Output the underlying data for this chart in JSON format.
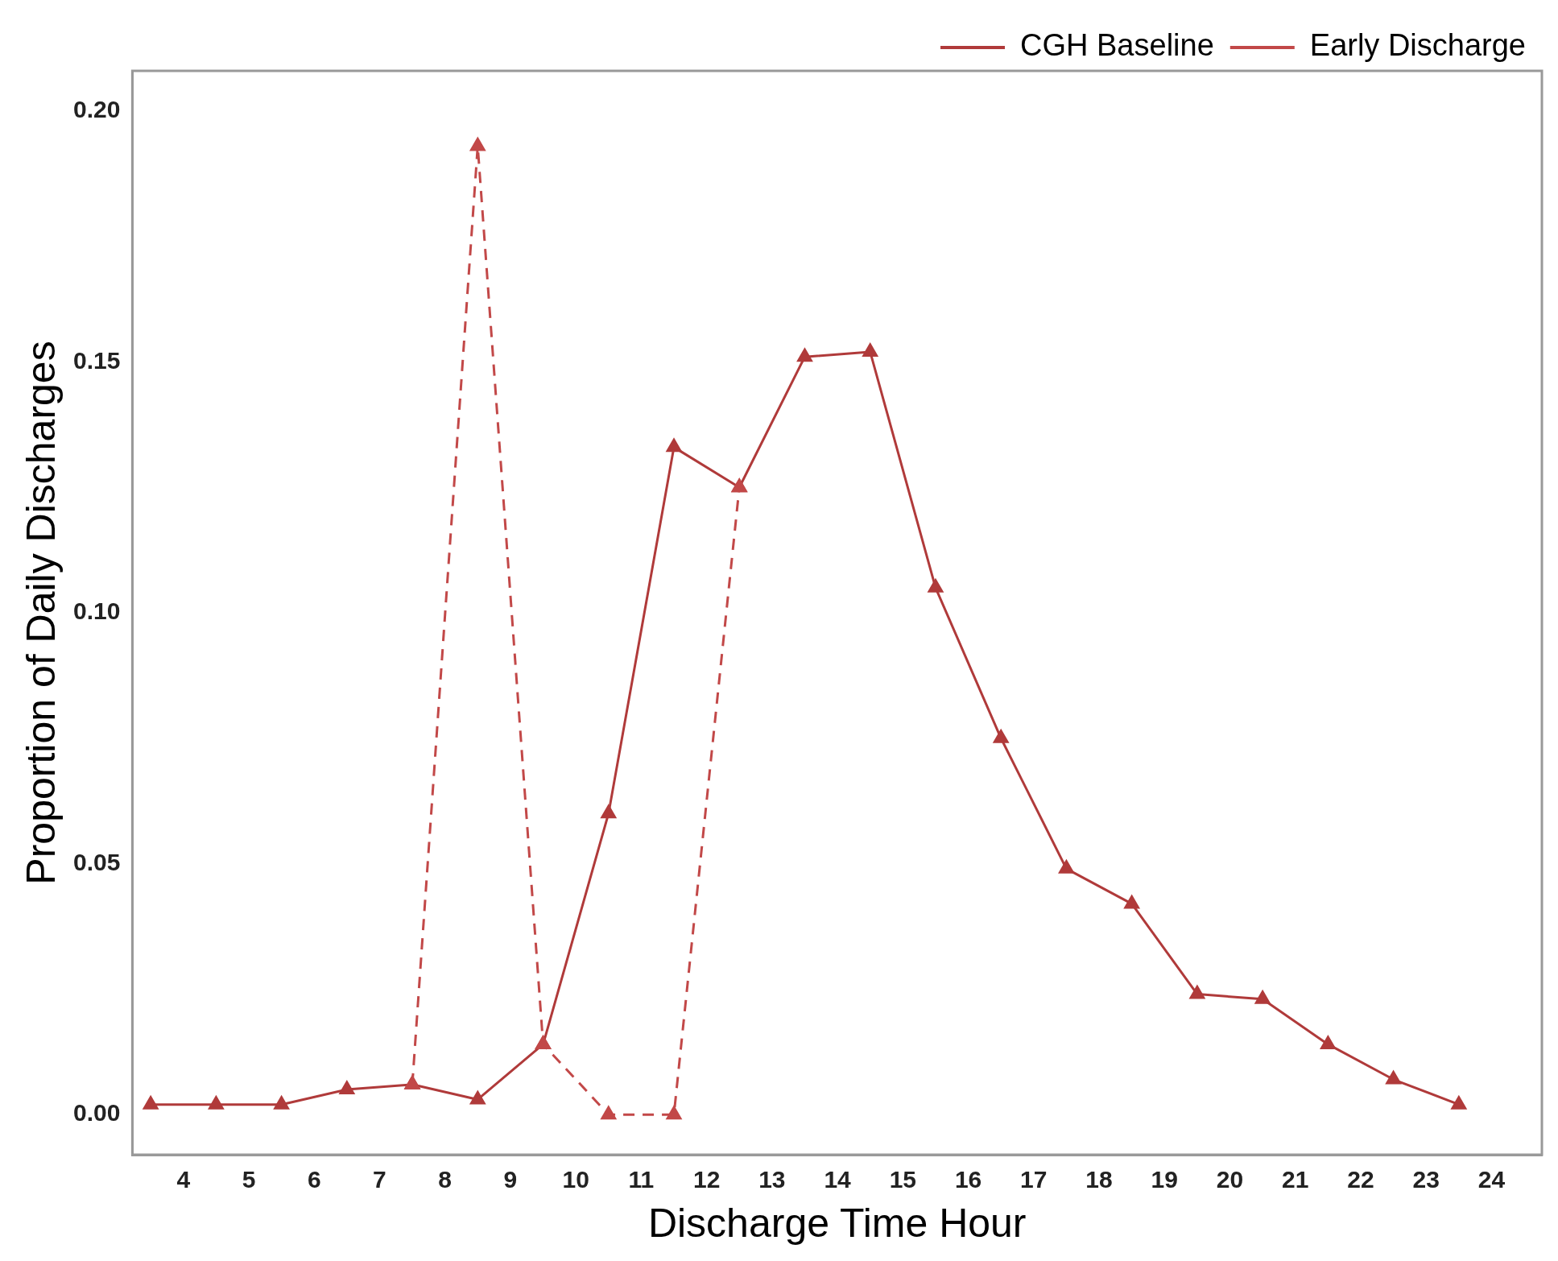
{
  "chart_data": {
    "type": "line",
    "xlabel": "Discharge Time Hour",
    "ylabel": "Proportion of Daily Discharges",
    "x": [
      3.5,
      4.5,
      5.5,
      6.5,
      7.5,
      8.5,
      9.5,
      10.5,
      11.5,
      12.5,
      13.5,
      14.5,
      15.5,
      16.5,
      17.5,
      18.5,
      19.5,
      20.5,
      21.5,
      22.5,
      23.5
    ],
    "series": [
      {
        "name": "CGH Baseline",
        "color": "#b03a3a",
        "line_style": "solid",
        "values": [
          0.002,
          0.002,
          0.002,
          0.005,
          0.006,
          0.003,
          0.014,
          0.06,
          0.133,
          0.125,
          0.151,
          0.152,
          0.105,
          0.075,
          0.049,
          0.042,
          0.024,
          0.023,
          0.014,
          0.007,
          0.002
        ]
      },
      {
        "name": "Early Discharge",
        "color": "#c24848",
        "line_style": "dashed",
        "values": [
          null,
          null,
          null,
          null,
          0.006,
          0.193,
          0.014,
          0.0,
          0.0,
          0.125,
          null,
          null,
          null,
          null,
          null,
          null,
          null,
          null,
          null,
          null,
          null
        ]
      }
    ],
    "xlim": [
      3.22,
      24.77
    ],
    "xticks": [
      4,
      5,
      6,
      7,
      8,
      9,
      10,
      11,
      12,
      13,
      14,
      15,
      16,
      17,
      18,
      19,
      20,
      21,
      22,
      23,
      24
    ],
    "ylim": [
      -0.008,
      0.208
    ],
    "yticks": [
      {
        "value": 0,
        "label": "0.00"
      },
      {
        "value": 0.05,
        "label": "0.05"
      },
      {
        "value": 0.1,
        "label": "0.10"
      },
      {
        "value": 0.15,
        "label": "0.15"
      },
      {
        "value": 0.2,
        "label": "0.20"
      }
    ],
    "grid": false,
    "legend": "top right",
    "marker": "triangle"
  }
}
